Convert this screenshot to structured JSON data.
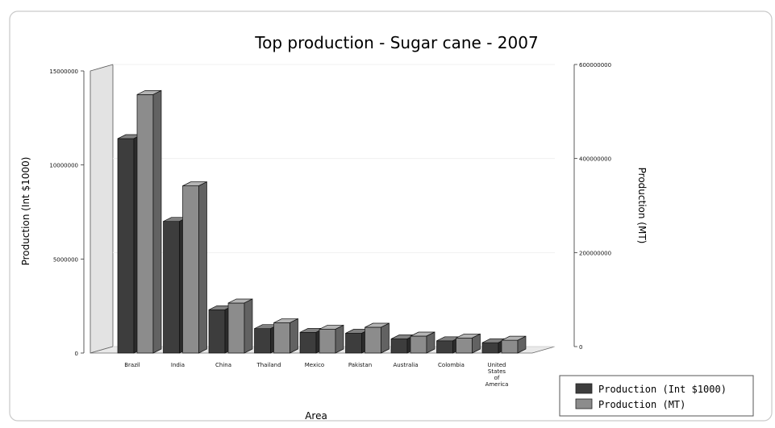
{
  "chart_data": {
    "type": "bar",
    "title": "Top production - Sugar cane - 2007",
    "xlabel": "Area",
    "ylabel_left": "Production (Int $1000)",
    "ylabel_right": "Production (MT)",
    "categories": [
      "Brazil",
      "India",
      "China",
      "Thailand",
      "Mexico",
      "Pakistan",
      "Australia",
      "Colombia",
      "United States of America"
    ],
    "category_lines": [
      [
        "Brazil"
      ],
      [
        "India"
      ],
      [
        "China"
      ],
      [
        "Thailand"
      ],
      [
        "Mexico"
      ],
      [
        "Pakistan"
      ],
      [
        "Australia"
      ],
      [
        "Colombia"
      ],
      [
        "United",
        "States",
        "of",
        "America"
      ]
    ],
    "series": [
      {
        "name": "Production (Int $1000)",
        "axis": "left",
        "values": [
          11400000,
          7000000,
          2300000,
          1300000,
          1100000,
          1050000,
          750000,
          650000,
          550000
        ]
      },
      {
        "name": "Production (MT)",
        "axis": "right",
        "values": [
          549700000,
          355500000,
          106300000,
          64400000,
          50700000,
          54800000,
          36000000,
          32000000,
          27200000
        ]
      }
    ],
    "left_axis": {
      "min": 0,
      "max": 15000000,
      "ticks": [
        0,
        5000000,
        10000000,
        15000000
      ],
      "tick_labels": [
        "0",
        "5000000",
        "10000000",
        "15000000"
      ]
    },
    "right_axis": {
      "min": 0,
      "max": 600000000,
      "ticks": [
        0,
        200000000,
        400000000,
        600000000
      ],
      "tick_labels": [
        "0",
        "200000000",
        "400000000",
        "600000000"
      ]
    },
    "legend_position": "bottom-right",
    "colors": {
      "series_left": "#3d3d3d",
      "series_right": "#8c8c8c",
      "wall": "#e3e3e3",
      "grid": "#ededed"
    }
  }
}
